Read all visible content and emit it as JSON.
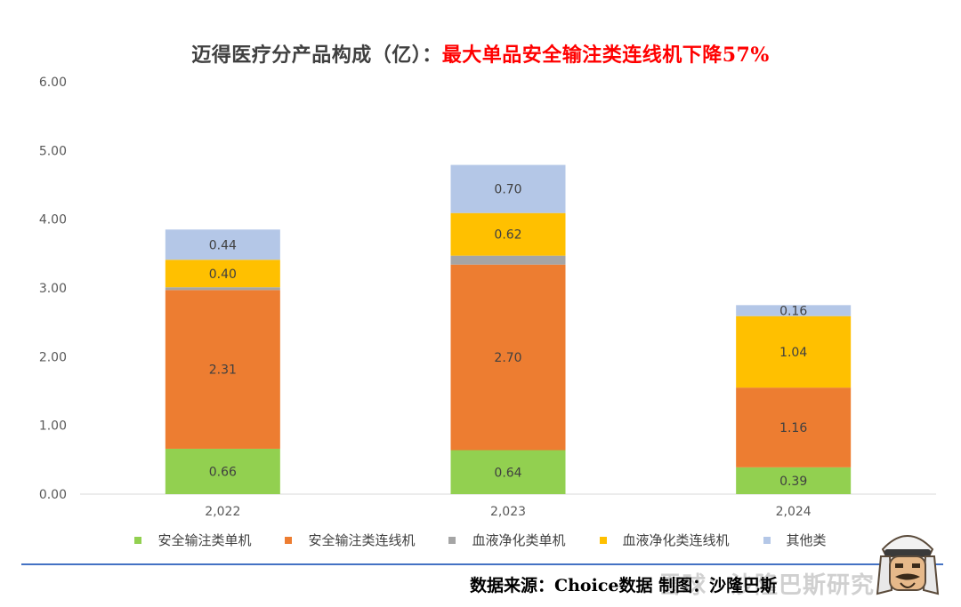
{
  "title": {
    "main": "迈得医疗分产品构成（亿）：",
    "highlight": "最大单品安全输注类连线机下降57%"
  },
  "source_text": "数据来源：Choice数据   制图：沙隆巴斯",
  "watermark_text": "雪球：沙隆巴斯研究",
  "colors": {
    "安全输注类单机": "#92d050",
    "安全输注类连线机": "#ed7d31",
    "血液净化类单机": "#a5a5a5",
    "血液净化类连线机": "#ffc000",
    "其他类": "#b4c7e7"
  },
  "chart_data": {
    "type": "bar",
    "stacked": true,
    "categories": [
      "2,022",
      "2,023",
      "2,024"
    ],
    "series": [
      {
        "name": "安全输注类单机",
        "values": [
          0.66,
          0.64,
          0.39
        ],
        "labels": [
          "0.66",
          "0.64",
          "0.39"
        ]
      },
      {
        "name": "安全输注类连线机",
        "values": [
          2.31,
          2.7,
          1.16
        ],
        "labels": [
          "2.31",
          "2.70",
          "1.16"
        ]
      },
      {
        "name": "血液净化类单机",
        "values": [
          0.04,
          0.13,
          0.0
        ],
        "labels": [
          "",
          "",
          ""
        ]
      },
      {
        "name": "血液净化类连线机",
        "values": [
          0.4,
          0.62,
          1.04
        ],
        "labels": [
          "0.40",
          "0.62",
          "1.04"
        ]
      },
      {
        "name": "其他类",
        "values": [
          0.44,
          0.7,
          0.16
        ],
        "labels": [
          "0.44",
          "0.70",
          "0.16"
        ]
      }
    ],
    "ylim": [
      0,
      6
    ],
    "yticks": [
      "0.00",
      "1.00",
      "2.00",
      "3.00",
      "4.00",
      "5.00",
      "6.00"
    ],
    "legend_position": "bottom",
    "grid": false
  }
}
